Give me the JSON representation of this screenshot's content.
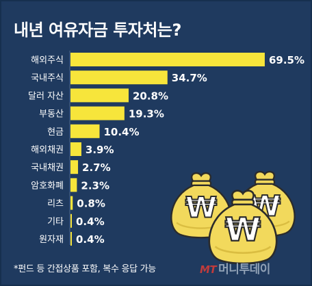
{
  "chart_data": {
    "type": "bar",
    "title": "내년 여유자금 투자처는?",
    "categories": [
      "해외주식",
      "국내주식",
      "달러 자산",
      "부동산",
      "현금",
      "해외채권",
      "국내채권",
      "암호화폐",
      "리츠",
      "기타",
      "원자재"
    ],
    "values": [
      69.5,
      34.7,
      20.8,
      19.3,
      10.4,
      3.9,
      2.7,
      2.3,
      0.8,
      0.4,
      0.4
    ],
    "value_labels": [
      "69.5%",
      "34.7%",
      "20.8%",
      "19.3%",
      "10.4%",
      "3.9%",
      "2.7%",
      "2.3%",
      "0.8%",
      "0.4%",
      "0.4%"
    ],
    "orientation": "horizontal",
    "xlim": [
      0,
      70
    ],
    "grid": false,
    "bar_color": "#f7e53b",
    "background_color": "#1f3a5f"
  },
  "footnote": "*펀드 등 간접상품 포함, 복수 응답 가능",
  "source": {
    "logo": "MT",
    "name": "머니투데이"
  },
  "illustration": {
    "icon": "money-bag-icon",
    "symbol": "₩",
    "color": "#f2d95c"
  }
}
